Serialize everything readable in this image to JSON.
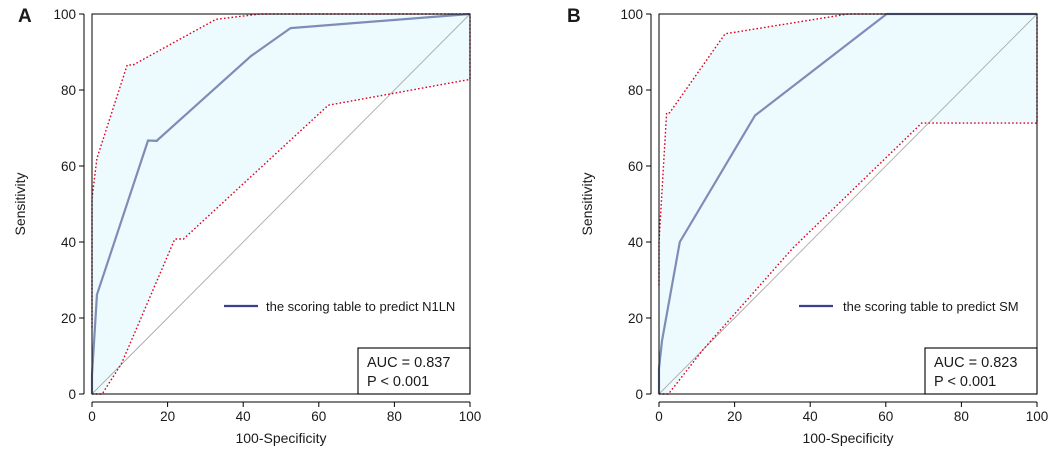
{
  "chart_data": [
    {
      "type": "line",
      "panel_label": "A",
      "xlabel": "100-Specificity",
      "ylabel": "Sensitivity",
      "xlim": [
        0,
        100
      ],
      "ylim": [
        0,
        100
      ],
      "x_ticks": [
        0,
        20,
        40,
        60,
        80,
        100
      ],
      "y_ticks": [
        0,
        20,
        40,
        60,
        80,
        100
      ],
      "legend_position": "lower-right",
      "legend_label": "the scoring table to predict N1LN",
      "stats": [
        "AUC = 0.837",
        "P < 0.001"
      ],
      "colors": {
        "roc": "#7e8cb7",
        "ci": "#e0001b",
        "fill": "#eefbfe",
        "diagonal": "#aaaaaa",
        "legend_line": "#3a3f8f"
      },
      "series": [
        {
          "name": "ROC curve",
          "x": [
            0,
            0,
            1.3,
            1.3,
            14.8,
            14.8,
            17.2,
            17.2,
            42,
            52.5,
            100
          ],
          "y": [
            0,
            5,
            25.9,
            26.1,
            66.6,
            66.7,
            66.6,
            66.7,
            88.9,
            96.3,
            100
          ]
        },
        {
          "name": "Upper 95% CI",
          "x": [
            0,
            0,
            1.3,
            9.3,
            10.9,
            32.8,
            44.5,
            100,
            100
          ],
          "y": [
            17.5,
            51.5,
            62,
            86.6,
            86.6,
            98.6,
            100,
            100,
            100
          ]
        },
        {
          "name": "Lower 95% CI",
          "x": [
            0,
            2.7,
            7.8,
            21.9,
            24.2,
            62.5,
            100,
            100
          ],
          "y": [
            0,
            0,
            8,
            40.8,
            40.8,
            76,
            82.8,
            100
          ]
        },
        {
          "name": "Reference line",
          "x": [
            0,
            100
          ],
          "y": [
            0,
            100
          ]
        }
      ]
    },
    {
      "type": "line",
      "panel_label": "B",
      "xlabel": "100-Specificity",
      "ylabel": "Sensitivity",
      "xlim": [
        0,
        100
      ],
      "ylim": [
        0,
        100
      ],
      "x_ticks": [
        0,
        20,
        40,
        60,
        80,
        100
      ],
      "y_ticks": [
        0,
        20,
        40,
        60,
        80,
        100
      ],
      "legend_position": "lower-right",
      "legend_label": "the scoring table to predict SM",
      "stats": [
        "AUC = 0.823",
        "P < 0.001"
      ],
      "colors": {
        "roc": "#7e8cb7",
        "ci": "#e0001b",
        "fill": "#eefbfe",
        "diagonal": "#aaaaaa",
        "legend_line": "#3a3f8f"
      },
      "series": [
        {
          "name": "ROC curve",
          "x": [
            0,
            0,
            0.8,
            5.5,
            25.4,
            60.2,
            100
          ],
          "y": [
            0,
            6.7,
            14,
            40,
            73.3,
            100,
            100
          ]
        },
        {
          "name": "Upper 95% CI",
          "x": [
            0,
            0,
            2,
            2.8,
            17.5,
            50,
            100,
            100
          ],
          "y": [
            28.6,
            40,
            74,
            74,
            94.8,
            100,
            100,
            100
          ]
        },
        {
          "name": "Lower 95% CI",
          "x": [
            0,
            2.5,
            11.5,
            35.5,
            69.5,
            100,
            100
          ],
          "y": [
            0,
            0,
            11.5,
            38.5,
            71.3,
            71.3,
            100
          ]
        },
        {
          "name": "Reference line",
          "x": [
            0,
            100
          ],
          "y": [
            0,
            100
          ]
        }
      ]
    }
  ]
}
